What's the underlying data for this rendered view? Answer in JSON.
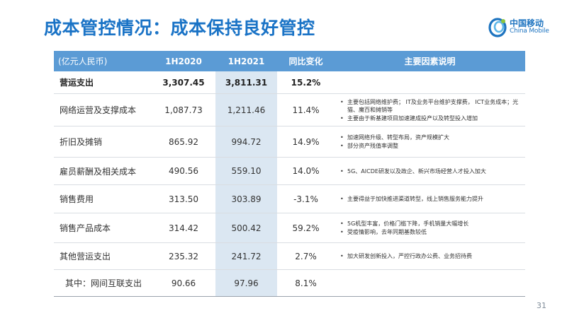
{
  "title": "成本管控情况：成本保持良好管控",
  "logo": {
    "name_zh": "中国移动",
    "name_en": "China Mobile",
    "icon": "china-mobile-logo-icon",
    "brand_color": "#1e74c0"
  },
  "colors": {
    "title": "#1a73c6",
    "header_bg": "#5b9bd5",
    "highlight_col": "#dbe7f2"
  },
  "table": {
    "headers": [
      "(亿元人民币)",
      "1H2020",
      "1H2021",
      "同比变化",
      "主要因素说明"
    ],
    "rows": [
      {
        "name": "营运支出",
        "v2020": "3,307.45",
        "v2021": "3,811.31",
        "change": "15.2%",
        "notes": []
      },
      {
        "name": "网络运营及支撑成本",
        "v2020": "1,087.73",
        "v2021": "1,211.46",
        "change": "11.4%",
        "notes": [
          "主要包括网络维护费； IT及业务平台维护支撑费， ICT业务成本；光猫、魔百和摊销等",
          "主要由于新基建项目加速建成投产以及转型投入增加"
        ]
      },
      {
        "name": "折旧及摊销",
        "v2020": "865.92",
        "v2021": "994.72",
        "change": "14.9%",
        "notes": [
          "加速网络升级、转型布局，资产规模扩大",
          "部分资产残值率调整"
        ]
      },
      {
        "name": "雇员薪酬及相关成本",
        "v2020": "490.56",
        "v2021": "559.10",
        "change": "14.0%",
        "notes": [
          "5G、AICDE研发以及政企、新兴市场经营人才投入加大"
        ]
      },
      {
        "name": "销售费用",
        "v2020": "313.50",
        "v2021": "303.89",
        "change": "-3.1%",
        "notes": [
          "主要得益于加快推进渠道转型，线上销售服务能力提升"
        ]
      },
      {
        "name": "销售产品成本",
        "v2020": "314.42",
        "v2021": "500.42",
        "change": "59.2%",
        "notes": [
          "5G机型丰富，价格门槛下降，手机销量大幅增长",
          "受疫情影响，去年同期基数较低"
        ]
      },
      {
        "name": "其他营运支出",
        "v2020": "235.32",
        "v2021": "241.72",
        "change": "2.7%",
        "notes": [
          "加大研发创新投入，严控行政办公费、业务招待费"
        ]
      },
      {
        "name": "其中：网间互联支出",
        "v2020": "90.66",
        "v2021": "97.96",
        "change": "8.1%",
        "notes": []
      }
    ]
  },
  "page_number": "31"
}
